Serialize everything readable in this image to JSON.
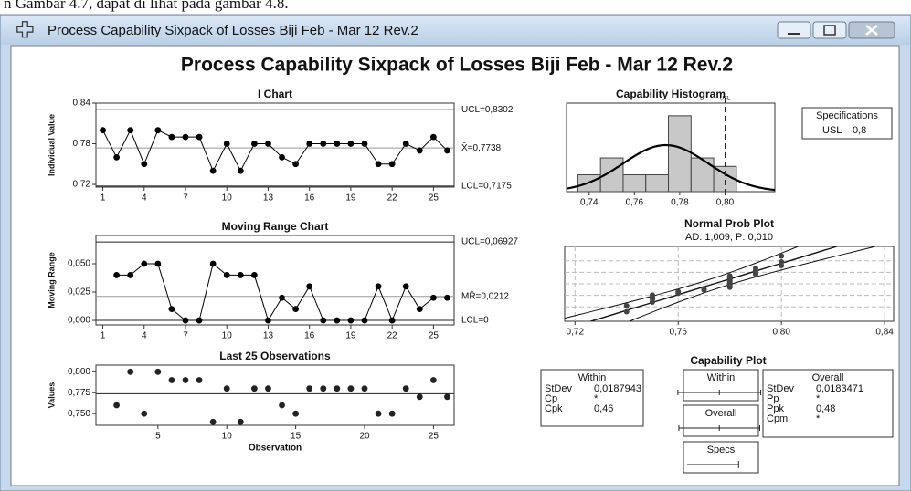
{
  "caption": "n Gambar 4.7, dapat di lihat pada gambar 4.8.",
  "window": {
    "title": "Process Capability Sixpack of Losses Biji Feb - Mar 12 Rev.2"
  },
  "title": "Process Capability Sixpack of Losses Biji Feb - Mar 12 Rev.2",
  "chart_data": [
    {
      "type": "line",
      "title": "I Chart",
      "y_label": "Individual Value",
      "x": [
        1,
        2,
        3,
        4,
        5,
        6,
        7,
        8,
        9,
        10,
        11,
        12,
        13,
        14,
        15,
        16,
        17,
        18,
        19,
        20,
        21,
        22,
        23,
        24,
        25,
        26
      ],
      "values": [
        0.8,
        0.76,
        0.8,
        0.75,
        0.8,
        0.79,
        0.79,
        0.79,
        0.74,
        0.78,
        0.74,
        0.78,
        0.78,
        0.76,
        0.75,
        0.78,
        0.78,
        0.78,
        0.78,
        0.78,
        0.75,
        0.75,
        0.78,
        0.77,
        0.79,
        0.77
      ],
      "xlim": [
        0.5,
        26.5
      ],
      "ylim": [
        0.716,
        0.84
      ],
      "xticks": [
        1,
        4,
        7,
        10,
        13,
        16,
        19,
        22,
        25
      ],
      "yticks": [
        {
          "value": 0.72,
          "label": "0,72"
        },
        {
          "value": 0.78,
          "label": "0,78"
        },
        {
          "value": 0.84,
          "label": "0,84"
        }
      ],
      "control_limits": [
        {
          "value": 0.8302,
          "label": "UCL=0,8302"
        },
        {
          "value": 0.7738,
          "label": "X̄=0,7738"
        },
        {
          "value": 0.7175,
          "label": "LCL=0,7175"
        }
      ]
    },
    {
      "type": "line",
      "title": "Moving Range Chart",
      "y_label": "Moving Range",
      "x": [
        1,
        2,
        3,
        4,
        5,
        6,
        7,
        8,
        9,
        10,
        11,
        12,
        13,
        14,
        15,
        16,
        17,
        18,
        19,
        20,
        21,
        22,
        23,
        24,
        25,
        26
      ],
      "values": [
        null,
        0.04,
        0.04,
        0.05,
        0.05,
        0.01,
        0,
        0,
        0.05,
        0.04,
        0.04,
        0.04,
        0,
        0.02,
        0.01,
        0.03,
        0,
        0,
        0,
        0,
        0.03,
        0,
        0.03,
        0.01,
        0.02,
        0.02
      ],
      "xlim": [
        0.5,
        26.5
      ],
      "ylim": [
        -0.004,
        0.075
      ],
      "xticks": [
        1,
        4,
        7,
        10,
        13,
        16,
        19,
        22,
        25
      ],
      "yticks": [
        {
          "value": 0,
          "label": "0,000"
        },
        {
          "value": 0.025,
          "label": "0,025"
        },
        {
          "value": 0.05,
          "label": "0,050"
        }
      ],
      "control_limits": [
        {
          "value": 0.06927,
          "label": "UCL=0,06927"
        },
        {
          "value": 0.0212,
          "label": "MR̄=0,0212"
        },
        {
          "value": 0,
          "label": "LCL=0"
        }
      ]
    },
    {
      "type": "scatter",
      "title": "Last 25 Observations",
      "y_label": "Values",
      "x_label": "Observation",
      "x": [
        2,
        3,
        4,
        5,
        6,
        7,
        8,
        9,
        10,
        11,
        12,
        13,
        14,
        15,
        16,
        17,
        18,
        19,
        20,
        21,
        22,
        23,
        24,
        25,
        26
      ],
      "values": [
        0.76,
        0.8,
        0.75,
        0.8,
        0.79,
        0.79,
        0.79,
        0.74,
        0.78,
        0.74,
        0.78,
        0.78,
        0.76,
        0.75,
        0.78,
        0.78,
        0.78,
        0.78,
        0.78,
        0.75,
        0.75,
        0.78,
        0.77,
        0.79,
        0.77
      ],
      "xlim": [
        0.5,
        26.5
      ],
      "ylim": [
        0.736,
        0.808
      ],
      "xticks": [
        5,
        10,
        15,
        20,
        25
      ],
      "yticks": [
        {
          "value": 0.75,
          "label": "0,750"
        },
        {
          "value": 0.775,
          "label": "0,775"
        },
        {
          "value": 0.8,
          "label": "0,800"
        }
      ]
    },
    {
      "type": "histogram",
      "title": "Capability Histogram",
      "bins": [
        0.735,
        0.745,
        0.755,
        0.765,
        0.775,
        0.785,
        0.795,
        0.805
      ],
      "counts": [
        2,
        4,
        2,
        2,
        9,
        4,
        3
      ],
      "xlim": [
        0.73,
        0.822
      ],
      "ylim": [
        0,
        10.5
      ],
      "xticks": [
        {
          "value": 0.74,
          "label": "0,74"
        },
        {
          "value": 0.76,
          "label": "0,76"
        },
        {
          "value": 0.78,
          "label": "0,78"
        },
        {
          "value": 0.8,
          "label": "0,80"
        }
      ],
      "usl_marker": {
        "value": 0.8,
        "label": "USL"
      },
      "specifications": {
        "title": "Specifications",
        "name": "USL",
        "value": {
          "value": 0.8,
          "label": "0,8"
        }
      }
    },
    {
      "type": "probability",
      "title": "Normal Prob Plot",
      "subtitle": "AD: 1,009, P: 0,010",
      "x": [
        0.74,
        0.74,
        0.75,
        0.75,
        0.75,
        0.75,
        0.76,
        0.76,
        0.77,
        0.77,
        0.78,
        0.78,
        0.78,
        0.78,
        0.78,
        0.78,
        0.78,
        0.78,
        0.78,
        0.79,
        0.79,
        0.79,
        0.79,
        0.8,
        0.8,
        0.8
      ],
      "xlim": [
        0.716,
        0.8435
      ],
      "xticks": [
        {
          "value": 0.72,
          "label": "0,72"
        },
        {
          "value": 0.76,
          "label": "0,76"
        },
        {
          "value": 0.8,
          "label": "0,80"
        },
        {
          "value": 0.84,
          "label": "0,84"
        }
      ]
    },
    {
      "type": "capability",
      "title": "Capability Plot",
      "within": {
        "title": "Within",
        "stats": [
          {
            "name": "StDev",
            "value": {
              "value": 0.0187943,
              "label": "0,0187943"
            }
          },
          {
            "name": "Cp",
            "value": "*"
          },
          {
            "name": "Cpk",
            "value": {
              "value": 0.46,
              "label": "0,46"
            }
          }
        ]
      },
      "overall": {
        "title": "Overall",
        "stats": [
          {
            "name": "StDev",
            "value": {
              "value": 0.0183471,
              "label": "0,0183471"
            }
          },
          {
            "name": "Pp",
            "value": "*"
          },
          {
            "name": "Ppk",
            "value": {
              "value": 0.48,
              "label": "0,48"
            }
          },
          {
            "name": "Cpm",
            "value": "*"
          }
        ]
      },
      "bars": [
        "Within",
        "Overall",
        "Specs"
      ]
    }
  ]
}
